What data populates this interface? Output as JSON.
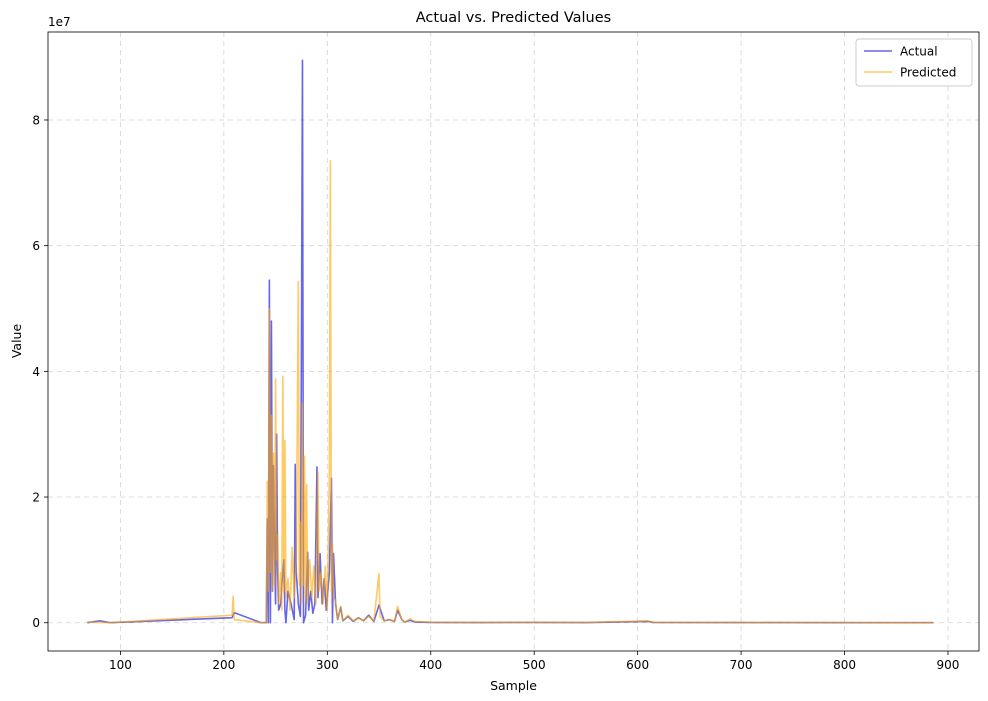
{
  "chart_data": {
    "type": "line",
    "title": "Actual vs. Predicted Values",
    "xlabel": "Sample",
    "ylabel": "Value",
    "y_offset_text": "1e7",
    "xlim": [
      30,
      930
    ],
    "ylim": [
      -4500000,
      94000000
    ],
    "xticks": [
      100,
      200,
      300,
      400,
      500,
      600,
      700,
      800,
      900
    ],
    "xtick_labels": [
      "100",
      "200",
      "300",
      "400",
      "500",
      "600",
      "700",
      "800",
      "900"
    ],
    "yticks": [
      0,
      20000000,
      40000000,
      60000000,
      80000000
    ],
    "ytick_labels": [
      "0",
      "2",
      "4",
      "6",
      "8"
    ],
    "grid": true,
    "legend_position": "top-right",
    "series": [
      {
        "name": "Actual",
        "color": "#0000dd",
        "opacity": 0.6,
        "points": [
          [
            68,
            0
          ],
          [
            80,
            300000
          ],
          [
            90,
            0
          ],
          [
            208,
            800000
          ],
          [
            210,
            1600000
          ],
          [
            236,
            0
          ],
          [
            241,
            0
          ],
          [
            242,
            16500000
          ],
          [
            243,
            0
          ],
          [
            244,
            54500000
          ],
          [
            245,
            0
          ],
          [
            246,
            48000000
          ],
          [
            247,
            5000000
          ],
          [
            248,
            25000000
          ],
          [
            249,
            12000000
          ],
          [
            250,
            3000000
          ],
          [
            251,
            30000000
          ],
          [
            252,
            8000000
          ],
          [
            253,
            2000000
          ],
          [
            255,
            3000000
          ],
          [
            256,
            6000000
          ],
          [
            258,
            10000000
          ],
          [
            259,
            2000000
          ],
          [
            260,
            0
          ],
          [
            262,
            5000000
          ],
          [
            265,
            3000000
          ],
          [
            268,
            500000
          ],
          [
            269,
            25200000
          ],
          [
            270,
            8000000
          ],
          [
            272,
            3000000
          ],
          [
            274,
            1000000
          ],
          [
            276,
            89500000
          ],
          [
            277,
            0
          ],
          [
            279,
            1200000
          ],
          [
            281,
            11200000
          ],
          [
            282,
            2000000
          ],
          [
            284,
            5000000
          ],
          [
            286,
            1500000
          ],
          [
            288,
            3000000
          ],
          [
            290,
            24800000
          ],
          [
            291,
            4000000
          ],
          [
            293,
            11000000
          ],
          [
            295,
            3000000
          ],
          [
            297,
            7000000
          ],
          [
            299,
            2000000
          ],
          [
            302,
            8000000
          ],
          [
            304,
            23000000
          ],
          [
            305,
            0
          ],
          [
            306,
            11000000
          ],
          [
            308,
            3000000
          ],
          [
            310,
            500000
          ],
          [
            313,
            2500000
          ],
          [
            315,
            300000
          ],
          [
            320,
            1000000
          ],
          [
            325,
            200000
          ],
          [
            330,
            800000
          ],
          [
            335,
            300000
          ],
          [
            340,
            1200000
          ],
          [
            345,
            200000
          ],
          [
            350,
            2800000
          ],
          [
            355,
            300000
          ],
          [
            360,
            500000
          ],
          [
            365,
            200000
          ],
          [
            368,
            2000000
          ],
          [
            372,
            500000
          ],
          [
            375,
            100000
          ],
          [
            380,
            400000
          ],
          [
            385,
            100000
          ],
          [
            400,
            50000
          ],
          [
            450,
            30000
          ],
          [
            500,
            50000
          ],
          [
            550,
            30000
          ],
          [
            610,
            200000
          ],
          [
            615,
            50000
          ],
          [
            700,
            20000
          ],
          [
            800,
            10000
          ],
          [
            886,
            0
          ]
        ]
      },
      {
        "name": "Predicted",
        "color": "#ffa500",
        "opacity": 0.6,
        "points": [
          [
            68,
            100000
          ],
          [
            90,
            0
          ],
          [
            208,
            1200000
          ],
          [
            209,
            4200000
          ],
          [
            210,
            500000
          ],
          [
            236,
            0
          ],
          [
            241,
            0
          ],
          [
            242,
            22500000
          ],
          [
            243,
            5000000
          ],
          [
            244,
            50000000
          ],
          [
            245,
            8000000
          ],
          [
            246,
            33000000
          ],
          [
            247,
            5000000
          ],
          [
            248,
            27000000
          ],
          [
            249,
            6000000
          ],
          [
            250,
            38800000
          ],
          [
            251,
            10000000
          ],
          [
            252,
            14000000
          ],
          [
            253,
            3000000
          ],
          [
            255,
            8000000
          ],
          [
            256,
            2000000
          ],
          [
            257,
            39200000
          ],
          [
            258,
            5000000
          ],
          [
            259,
            29000000
          ],
          [
            260,
            4000000
          ],
          [
            262,
            7000000
          ],
          [
            264,
            2000000
          ],
          [
            266,
            12000000
          ],
          [
            268,
            4000000
          ],
          [
            270,
            10000000
          ],
          [
            272,
            54300000
          ],
          [
            273,
            6000000
          ],
          [
            274,
            16000000
          ],
          [
            275,
            3000000
          ],
          [
            276,
            35000000
          ],
          [
            277,
            6000000
          ],
          [
            278,
            26500000
          ],
          [
            279,
            4000000
          ],
          [
            280,
            22000000
          ],
          [
            281,
            3000000
          ],
          [
            283,
            10000000
          ],
          [
            285,
            4000000
          ],
          [
            287,
            9000000
          ],
          [
            289,
            3000000
          ],
          [
            291,
            24000000
          ],
          [
            292,
            5000000
          ],
          [
            294,
            8000000
          ],
          [
            296,
            3000000
          ],
          [
            298,
            9000000
          ],
          [
            300,
            2000000
          ],
          [
            302,
            24000000
          ],
          [
            303,
            73500000
          ],
          [
            304,
            5000000
          ],
          [
            305,
            12500000
          ],
          [
            306,
            4000000
          ],
          [
            308,
            3500000
          ],
          [
            310,
            500000
          ],
          [
            313,
            2500000
          ],
          [
            315,
            300000
          ],
          [
            320,
            1200000
          ],
          [
            325,
            300000
          ],
          [
            330,
            800000
          ],
          [
            335,
            300000
          ],
          [
            340,
            1000000
          ],
          [
            345,
            300000
          ],
          [
            350,
            7800000
          ],
          [
            351,
            1000000
          ],
          [
            355,
            300000
          ],
          [
            360,
            500000
          ],
          [
            365,
            200000
          ],
          [
            368,
            2600000
          ],
          [
            372,
            500000
          ],
          [
            375,
            100000
          ],
          [
            380,
            600000
          ],
          [
            385,
            200000
          ],
          [
            400,
            80000
          ],
          [
            450,
            40000
          ],
          [
            500,
            60000
          ],
          [
            550,
            40000
          ],
          [
            610,
            300000
          ],
          [
            615,
            60000
          ],
          [
            700,
            30000
          ],
          [
            800,
            20000
          ],
          [
            886,
            0
          ]
        ]
      }
    ]
  }
}
